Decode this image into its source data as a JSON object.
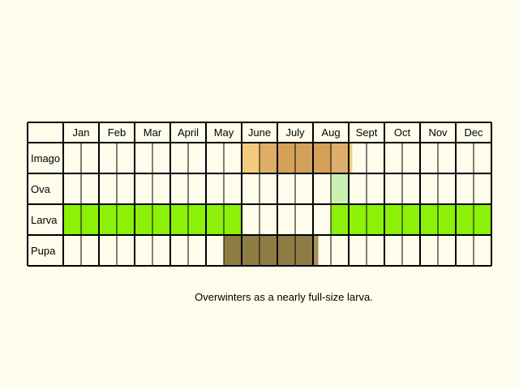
{
  "chart_data": {
    "type": "table",
    "months": [
      "Jan",
      "Feb",
      "Mar",
      "Apr",
      "May",
      "June",
      "July",
      "Aug",
      "Sept",
      "Oct",
      "Nov",
      "Dec"
    ],
    "month_labels": [
      "Jan",
      "Feb",
      "Mar",
      "April",
      "May",
      "June",
      "July",
      "Aug",
      "Sept",
      "Oct",
      "Nov",
      "Dec"
    ],
    "stages": [
      {
        "name": "Imago",
        "periods": [
          {
            "start_month": 5.0,
            "end_month": 5.5,
            "intensity": "low",
            "color": "#f4cb7e"
          },
          {
            "start_month": 5.5,
            "end_month": 6.0,
            "intensity": "medium",
            "color": "#deae6a"
          },
          {
            "start_month": 6.0,
            "end_month": 7.5,
            "intensity": "high",
            "color": "#d4a159"
          },
          {
            "start_month": 7.5,
            "end_month": 8.0,
            "intensity": "medium",
            "color": "#deae6a"
          },
          {
            "start_month": 8.0,
            "end_month": 8.1,
            "intensity": "low",
            "color": "#f4cb7e"
          }
        ]
      },
      {
        "name": "Ova",
        "periods": [
          {
            "start_month": 7.5,
            "end_month": 8.0,
            "intensity": "high",
            "color": "#c9f0b1"
          }
        ]
      },
      {
        "name": "Larva",
        "periods": [
          {
            "start_month": 0.0,
            "end_month": 5.0,
            "intensity": "high",
            "color": "#8cf008"
          },
          {
            "start_month": 7.5,
            "end_month": 12.0,
            "intensity": "high",
            "color": "#8cf008"
          }
        ]
      },
      {
        "name": "Pupa",
        "periods": [
          {
            "start_month": 4.5,
            "end_month": 7.0,
            "intensity": "high",
            "color": "#8e7c45"
          },
          {
            "start_month": 7.0,
            "end_month": 7.15,
            "intensity": "low",
            "color": "#a6925a"
          }
        ]
      }
    ]
  },
  "caption": "Overwinters as a nearly full-size larva."
}
